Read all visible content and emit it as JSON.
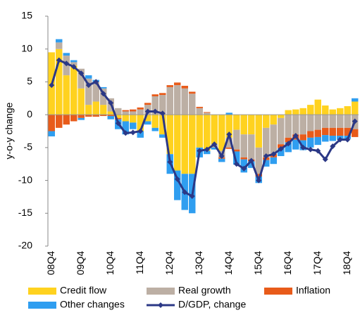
{
  "chart_data": {
    "type": "bar",
    "y_label": "y-o-y change",
    "categories": [
      "08Q4",
      null,
      null,
      null,
      "09Q4",
      null,
      null,
      null,
      "10Q4",
      null,
      null,
      null,
      "11Q4",
      null,
      null,
      null,
      "12Q4",
      null,
      null,
      null,
      "13Q4",
      null,
      null,
      null,
      "14Q4",
      null,
      null,
      null,
      "15Q4",
      null,
      null,
      null,
      "16Q4",
      null,
      null,
      null,
      "17Q4",
      null,
      null,
      null,
      "18Q4",
      null
    ],
    "series": [
      {
        "name": "Credit flow",
        "color": "#ffd21f",
        "values": [
          9.5,
          10,
          6,
          7.5,
          4,
          1.5,
          2,
          1.5,
          0.5,
          -0.5,
          -1,
          -1.2,
          -2.5,
          -1,
          -2,
          -3,
          -6,
          -8.5,
          -9,
          -9,
          -5,
          -5.5,
          -4.5,
          -5.5,
          -3.5,
          -2.3,
          -3,
          -3,
          -5,
          -2,
          -1.5,
          -0.5,
          0.7,
          0.8,
          1,
          1.5,
          2.3,
          1.4,
          0.8,
          1,
          1.3,
          2
        ]
      },
      {
        "name": "Real growth",
        "color": "#bcafa4",
        "values": [
          0,
          1,
          3,
          0.5,
          3,
          4,
          3,
          2.5,
          2,
          1,
          0.5,
          0.5,
          0.8,
          1.5,
          2.8,
          3,
          4.2,
          4.5,
          4,
          3.2,
          1,
          0.3,
          -0.5,
          -1,
          -1.5,
          -3,
          -3.5,
          -3.8,
          -4,
          -4.5,
          -4.5,
          -4,
          -3.5,
          -3,
          -3,
          -2.5,
          -2.3,
          -2,
          -2,
          -2,
          -2,
          -2.2
        ]
      },
      {
        "name": "Inflation",
        "color": "#e85b1a",
        "values": [
          -2.5,
          -2,
          -1.5,
          -1,
          -0.5,
          -0.3,
          -0.3,
          -0.2,
          -0.2,
          -0.2,
          0.2,
          0.3,
          0.3,
          0.3,
          0.3,
          0.3,
          0.3,
          0.4,
          0.4,
          0.3,
          0.2,
          0.1,
          0,
          -0.2,
          -0.2,
          -0.3,
          -0.3,
          -0.3,
          -0.4,
          -0.4,
          -0.5,
          -0.6,
          -0.7,
          -0.8,
          -0.9,
          -1,
          -1.1,
          -1.1,
          -1.2,
          -1.2,
          -1.2,
          -1.2
        ]
      },
      {
        "name": "Other changes",
        "color": "#2f9ef0",
        "values": [
          -0.8,
          0.5,
          0.4,
          0.3,
          -0.3,
          0.5,
          0.3,
          0.2,
          -0.5,
          -1.5,
          -2,
          -1,
          -1,
          -0.5,
          -0.5,
          -0.5,
          -3,
          -4.5,
          -5.5,
          -6,
          -1.5,
          -0.5,
          -0.3,
          -0.5,
          0.3,
          -2,
          -2,
          -1,
          -1,
          -1,
          -1,
          -1.2,
          -1.5,
          -1.5,
          -1.5,
          -1.5,
          -1.2,
          -1,
          -0.8,
          -0.6,
          -0.5,
          0.5
        ]
      },
      {
        "name": "D/GDP, change",
        "type": "line",
        "color": "#2b3886",
        "values": [
          4.5,
          8.3,
          7.8,
          7.3,
          6.3,
          4.5,
          5,
          3.2,
          1.8,
          -1.3,
          -2.8,
          -2.7,
          -2.5,
          0.5,
          0.5,
          0.2,
          -7.2,
          -9.8,
          -11.8,
          -12.4,
          -5.5,
          -5.3,
          -4.5,
          -6.3,
          -3,
          -7.5,
          -8.2,
          -7,
          -10,
          -6.3,
          -6,
          -5.2,
          -4.4,
          -3.2,
          -5,
          -5.3,
          -5.5,
          -6.8,
          -4.8,
          -3.8,
          -3.8,
          -1
        ]
      }
    ],
    "ylim": [
      -20,
      15
    ],
    "yticks": [
      -20,
      -15,
      -10,
      -5,
      0,
      5,
      10,
      15
    ],
    "grid": false
  }
}
